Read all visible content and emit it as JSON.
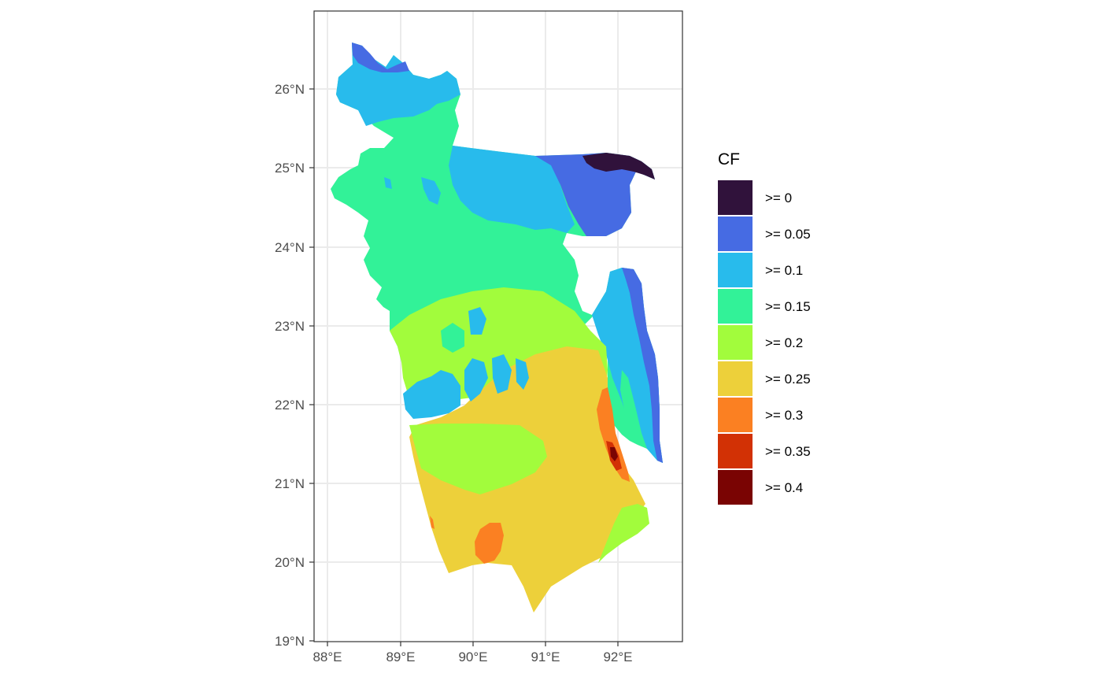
{
  "map": {
    "axes": {
      "x_ticks": [
        "88°E",
        "89°E",
        "90°E",
        "91°E",
        "92°E"
      ],
      "y_ticks": [
        "19°N",
        "20°N",
        "21°N",
        "22°N",
        "23°N",
        "24°N",
        "25°N",
        "26°N"
      ]
    },
    "legend": {
      "title": "CF",
      "position": "right",
      "items": [
        {
          "label": ">= 0",
          "color": "#30123B"
        },
        {
          "label": ">= 0.05",
          "color": "#466BE3"
        },
        {
          "label": ">= 0.1",
          "color": "#28BBEC"
        },
        {
          "label": ">= 0.15",
          "color": "#32F298"
        },
        {
          "label": ">= 0.2",
          "color": "#A2FC3C"
        },
        {
          "label": ">= 0.25",
          "color": "#EDD03A"
        },
        {
          "label": ">= 0.3",
          "color": "#FB8022"
        },
        {
          "label": ">= 0.35",
          "color": "#D23105"
        },
        {
          "label": ">= 0.4",
          "color": "#7A0403"
        }
      ]
    },
    "panel": {
      "background": "#ffffff",
      "grid": true,
      "border": "#333333"
    }
  }
}
